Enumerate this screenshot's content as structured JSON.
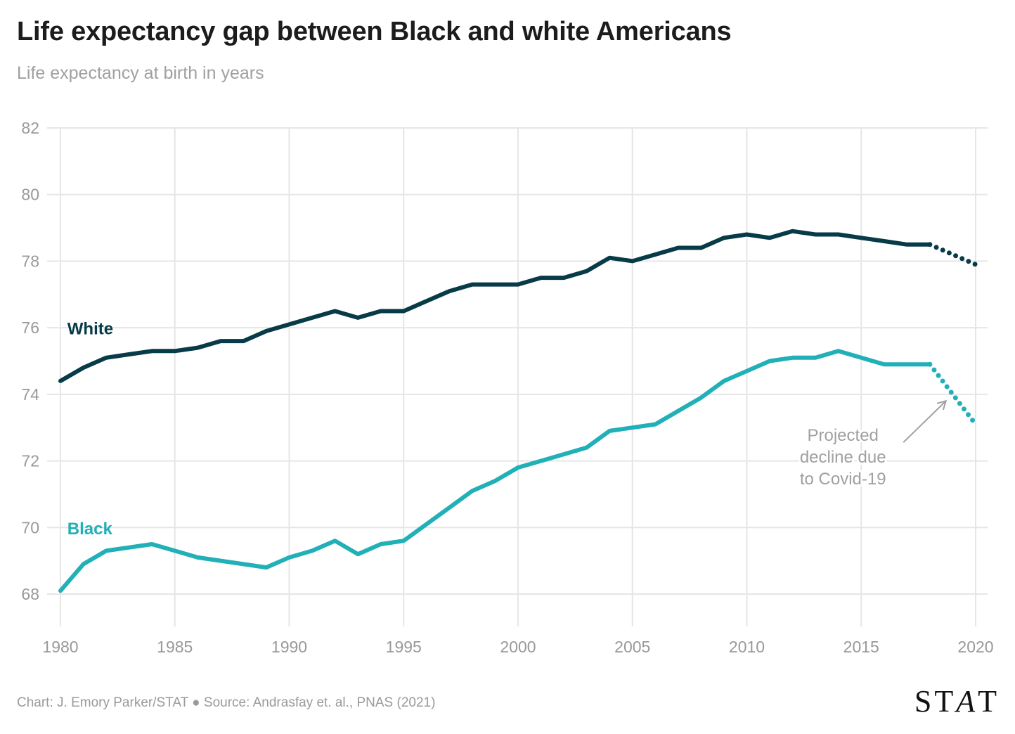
{
  "header": {
    "title": "Life expectancy gap between Black and white Americans",
    "subtitle": "Life expectancy at birth in years"
  },
  "footer": {
    "credit": "Chart: J. Emory Parker/STAT ● Source: Andrasfay et. al., PNAS (2021)",
    "logo_parts": [
      "ST",
      "A",
      "T"
    ]
  },
  "chart_data": {
    "type": "line",
    "title": "Life expectancy gap between Black and white Americans",
    "subtitle": "Life expectancy at birth in years",
    "xlabel": "",
    "ylabel": "",
    "xlim": [
      1980,
      2020
    ],
    "ylim": [
      67,
      82
    ],
    "x_ticks": [
      1980,
      1985,
      1990,
      1995,
      2000,
      2005,
      2010,
      2015,
      2020
    ],
    "y_ticks": [
      68,
      70,
      72,
      74,
      76,
      78,
      80,
      82
    ],
    "grid": true,
    "legend": "inline labels at left",
    "x": [
      1980,
      1981,
      1982,
      1983,
      1984,
      1985,
      1986,
      1987,
      1988,
      1989,
      1990,
      1991,
      1992,
      1993,
      1994,
      1995,
      1996,
      1997,
      1998,
      1999,
      2000,
      2001,
      2002,
      2003,
      2004,
      2005,
      2006,
      2007,
      2008,
      2009,
      2010,
      2011,
      2012,
      2013,
      2014,
      2015,
      2016,
      2017,
      2018
    ],
    "series": [
      {
        "name": "White",
        "color": "#073b47",
        "values": [
          74.4,
          74.8,
          75.1,
          75.2,
          75.3,
          75.3,
          75.4,
          75.6,
          75.6,
          75.9,
          76.1,
          76.3,
          76.5,
          76.3,
          76.5,
          76.5,
          76.8,
          77.1,
          77.3,
          77.3,
          77.3,
          77.5,
          77.5,
          77.7,
          78.1,
          78.0,
          78.2,
          78.4,
          78.4,
          78.7,
          78.8,
          78.7,
          78.9,
          78.8,
          78.8,
          78.7,
          78.6,
          78.5,
          78.5
        ],
        "projection": {
          "x": [
            2018,
            2020
          ],
          "values": [
            78.5,
            77.9
          ],
          "style": "dotted"
        }
      },
      {
        "name": "Black",
        "color": "#21b0b7",
        "values": [
          68.1,
          68.9,
          69.3,
          69.4,
          69.5,
          69.3,
          69.1,
          69.0,
          68.9,
          68.8,
          69.1,
          69.3,
          69.6,
          69.2,
          69.5,
          69.6,
          70.1,
          70.6,
          71.1,
          71.4,
          71.8,
          72.0,
          72.2,
          72.4,
          72.9,
          73.0,
          73.1,
          73.5,
          73.9,
          74.4,
          74.7,
          75.0,
          75.1,
          75.1,
          75.3,
          75.1,
          74.9,
          74.9,
          74.9
        ],
        "projection": {
          "x": [
            2018,
            2020
          ],
          "values": [
            74.9,
            73.1
          ],
          "style": "dotted"
        }
      }
    ],
    "labels": [
      {
        "text": "White",
        "series": "White",
        "x": 1980.3,
        "y": 75.8
      },
      {
        "text": "Black",
        "series": "Black",
        "x": 1980.3,
        "y": 69.8
      }
    ],
    "annotations": [
      {
        "lines": [
          "Projected",
          "decline due",
          "to Covid-19"
        ],
        "x": 2014.2,
        "y": 72.6,
        "arrow_to": {
          "x": 2018.7,
          "y": 73.8
        },
        "color": "#a0a0a0"
      }
    ]
  }
}
